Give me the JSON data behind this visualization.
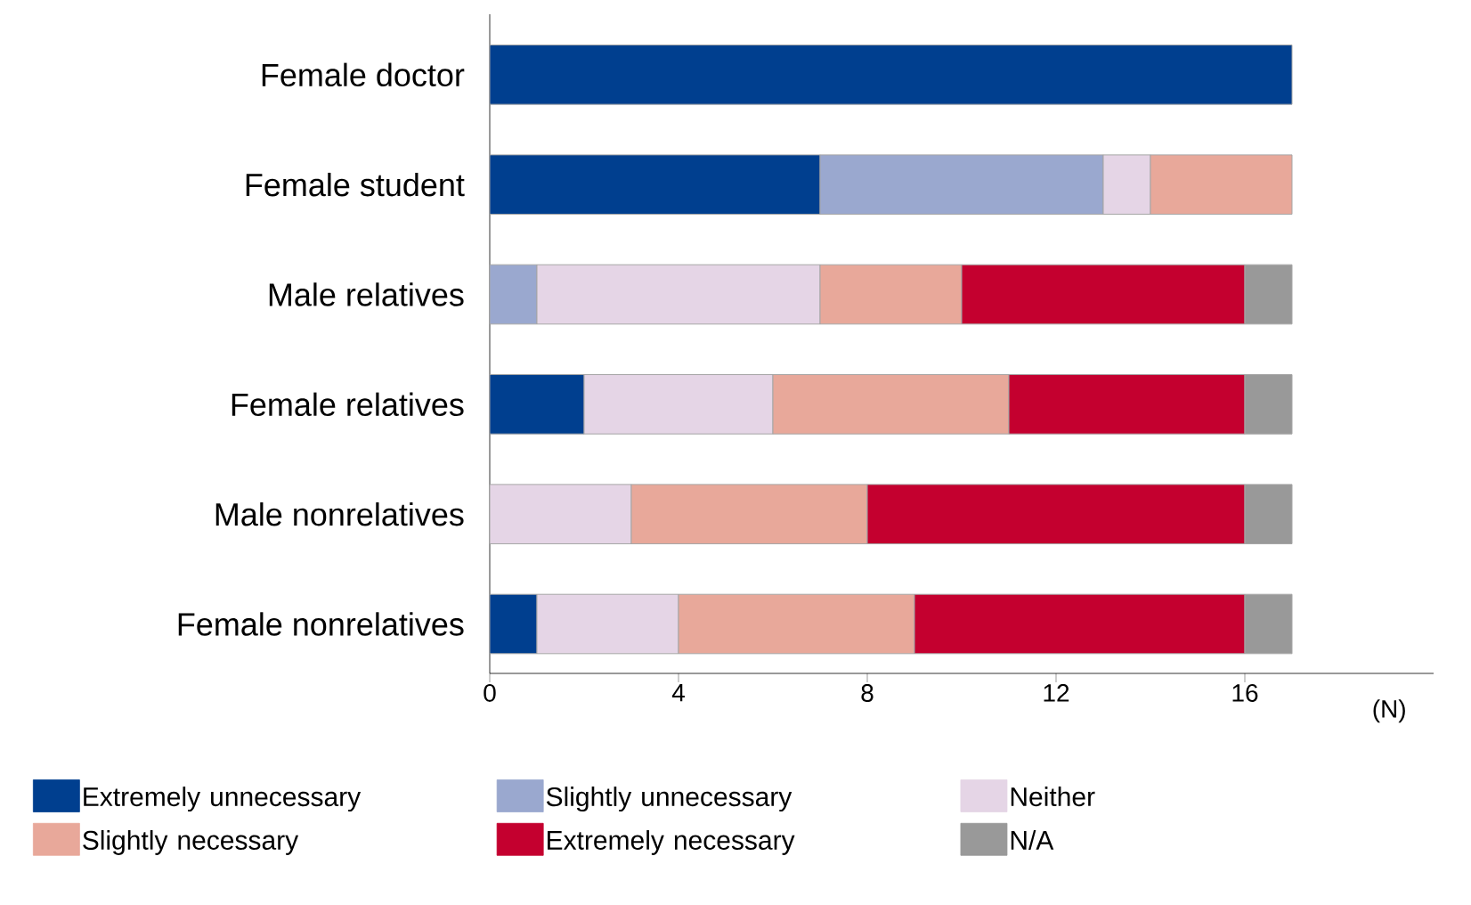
{
  "chart_data": {
    "type": "bar",
    "orientation": "horizontal",
    "stacked": true,
    "xlabel": "(N)",
    "categories": [
      "Female doctor",
      "Female student",
      "Male relatives",
      "Female relatives",
      "Male nonrelatives",
      "Female nonrelatives"
    ],
    "xlim": [
      0,
      20
    ],
    "xticks": [
      0,
      4,
      8,
      12,
      16
    ],
    "legend": "bottom",
    "grid": false,
    "series": [
      {
        "name": "Extremely unnecessary",
        "color": "#003f8f",
        "values": [
          17,
          7,
          null,
          2,
          null,
          1
        ]
      },
      {
        "name": "Slightly unnecessary",
        "color": "#9aa8cf",
        "values": [
          null,
          6,
          1,
          null,
          null,
          null
        ]
      },
      {
        "name": "Neither",
        "color": "#e5d5e6",
        "values": [
          null,
          1,
          6,
          4,
          3,
          3
        ]
      },
      {
        "name": "Slightly necessary",
        "color": "#e8a89a",
        "values": [
          null,
          3,
          3,
          5,
          5,
          5
        ]
      },
      {
        "name": "Extremely necessary",
        "color": "#c4002f",
        "values": [
          null,
          null,
          6,
          5,
          8,
          7
        ]
      },
      {
        "name": "N/A",
        "color": "#999999",
        "values": [
          null,
          null,
          1,
          1,
          1,
          1
        ]
      }
    ]
  }
}
